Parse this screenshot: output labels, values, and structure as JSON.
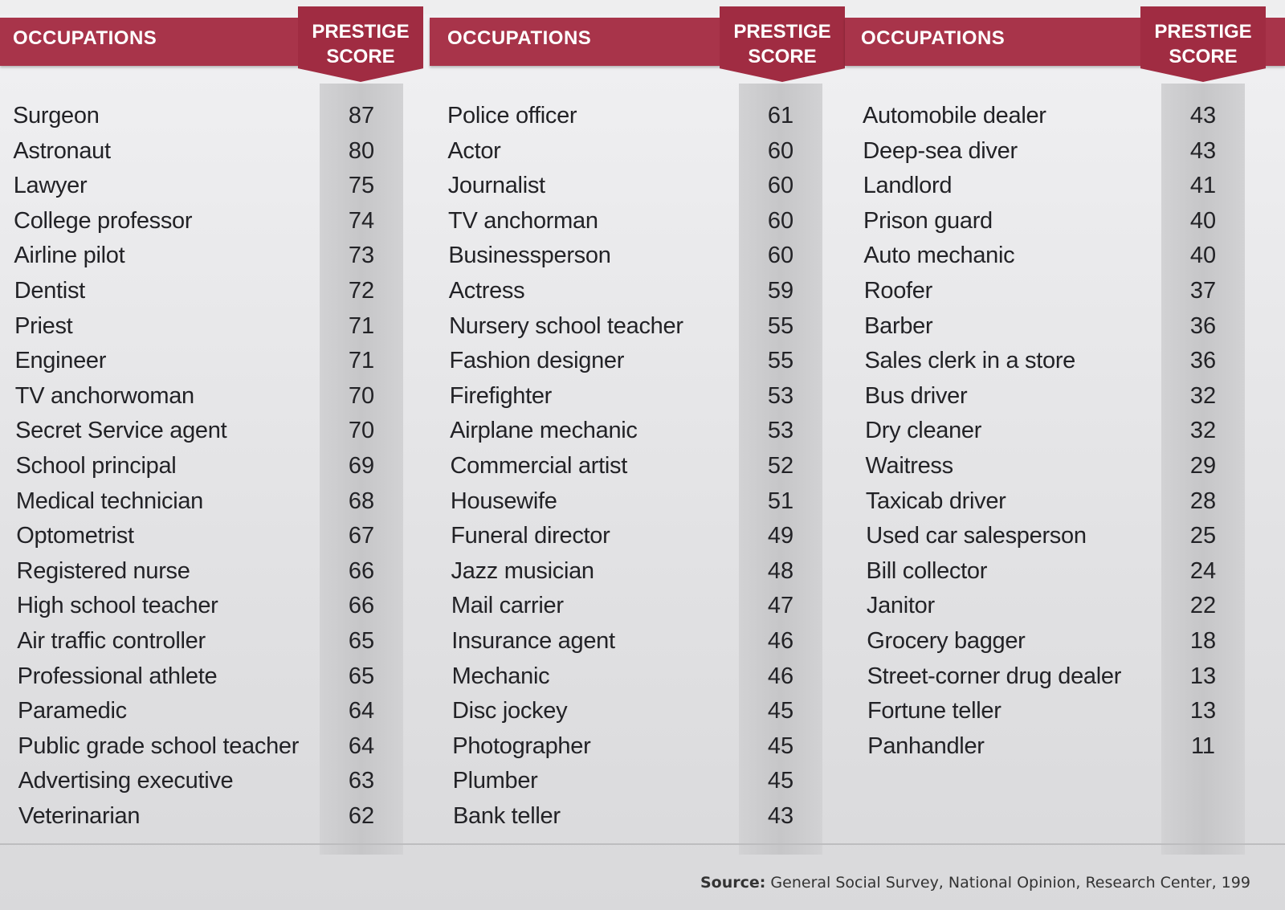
{
  "columns": [
    {
      "header": "OCCUPATIONS",
      "score_header_line1": "PRESTIGE",
      "score_header_line2": "SCORE",
      "rows": [
        {
          "occupation": "Surgeon",
          "score": "87"
        },
        {
          "occupation": "Astronaut",
          "score": "80"
        },
        {
          "occupation": "Lawyer",
          "score": "75"
        },
        {
          "occupation": "College professor",
          "score": "74"
        },
        {
          "occupation": "Airline pilot",
          "score": "73"
        },
        {
          "occupation": "Dentist",
          "score": "72"
        },
        {
          "occupation": "Priest",
          "score": "71"
        },
        {
          "occupation": "Engineer",
          "score": "71"
        },
        {
          "occupation": "TV anchorwoman",
          "score": "70"
        },
        {
          "occupation": "Secret Service agent",
          "score": "70"
        },
        {
          "occupation": "School principal",
          "score": "69"
        },
        {
          "occupation": "Medical technician",
          "score": "68"
        },
        {
          "occupation": "Optometrist",
          "score": "67"
        },
        {
          "occupation": "Registered nurse",
          "score": "66"
        },
        {
          "occupation": "High school teacher",
          "score": "66"
        },
        {
          "occupation": "Air traffic controller",
          "score": "65"
        },
        {
          "occupation": "Professional athlete",
          "score": "65"
        },
        {
          "occupation": "Paramedic",
          "score": "64"
        },
        {
          "occupation": "Public grade school teacher",
          "score": "64"
        },
        {
          "occupation": "Advertising executive",
          "score": "63"
        },
        {
          "occupation": "Veterinarian",
          "score": "62"
        }
      ]
    },
    {
      "header": "OCCUPATIONS",
      "score_header_line1": "PRESTIGE",
      "score_header_line2": "SCORE",
      "rows": [
        {
          "occupation": "Police officer",
          "score": "61"
        },
        {
          "occupation": "Actor",
          "score": "60"
        },
        {
          "occupation": "Journalist",
          "score": "60"
        },
        {
          "occupation": "TV anchorman",
          "score": "60"
        },
        {
          "occupation": "Businessperson",
          "score": "60"
        },
        {
          "occupation": "Actress",
          "score": "59"
        },
        {
          "occupation": "Nursery school teacher",
          "score": "55"
        },
        {
          "occupation": "Fashion designer",
          "score": "55"
        },
        {
          "occupation": "Firefighter",
          "score": "53"
        },
        {
          "occupation": "Airplane mechanic",
          "score": "53"
        },
        {
          "occupation": "Commercial artist",
          "score": "52"
        },
        {
          "occupation": "Housewife",
          "score": "51"
        },
        {
          "occupation": "Funeral director",
          "score": "49"
        },
        {
          "occupation": "Jazz musician",
          "score": "48"
        },
        {
          "occupation": "Mail carrier",
          "score": "47"
        },
        {
          "occupation": "Insurance agent",
          "score": "46"
        },
        {
          "occupation": "Mechanic",
          "score": "46"
        },
        {
          "occupation": "Disc jockey",
          "score": "45"
        },
        {
          "occupation": "Photographer",
          "score": "45"
        },
        {
          "occupation": "Plumber",
          "score": "45"
        },
        {
          "occupation": "Bank teller",
          "score": "43"
        }
      ]
    },
    {
      "header": "OCCUPATIONS",
      "score_header_line1": "PRESTIGE",
      "score_header_line2": "SCORE",
      "rows": [
        {
          "occupation": "Automobile dealer",
          "score": "43"
        },
        {
          "occupation": "Deep-sea diver",
          "score": "43"
        },
        {
          "occupation": "Landlord",
          "score": "41"
        },
        {
          "occupation": "Prison guard",
          "score": "40"
        },
        {
          "occupation": "Auto mechanic",
          "score": "40"
        },
        {
          "occupation": "Roofer",
          "score": "37"
        },
        {
          "occupation": "Barber",
          "score": "36"
        },
        {
          "occupation": "Sales clerk in a store",
          "score": "36"
        },
        {
          "occupation": "Bus driver",
          "score": "32"
        },
        {
          "occupation": "Dry cleaner",
          "score": "32"
        },
        {
          "occupation": "Waitress",
          "score": "29"
        },
        {
          "occupation": "Taxicab driver",
          "score": "28"
        },
        {
          "occupation": "Used car salesperson",
          "score": "25"
        },
        {
          "occupation": "Bill collector",
          "score": "24"
        },
        {
          "occupation": "Janitor",
          "score": "22"
        },
        {
          "occupation": "Grocery bagger",
          "score": "18"
        },
        {
          "occupation": "Street-corner drug dealer",
          "score": "13"
        },
        {
          "occupation": "Fortune teller",
          "score": "13"
        },
        {
          "occupation": "Panhandler",
          "score": "11"
        }
      ]
    }
  ],
  "source": {
    "label": "Source:",
    "text": " General Social Survey, National Opinion, Research Center, 199"
  },
  "colors": {
    "header_bar": "#a8344a",
    "score_tab": "#a02c42",
    "text": "#222226"
  }
}
